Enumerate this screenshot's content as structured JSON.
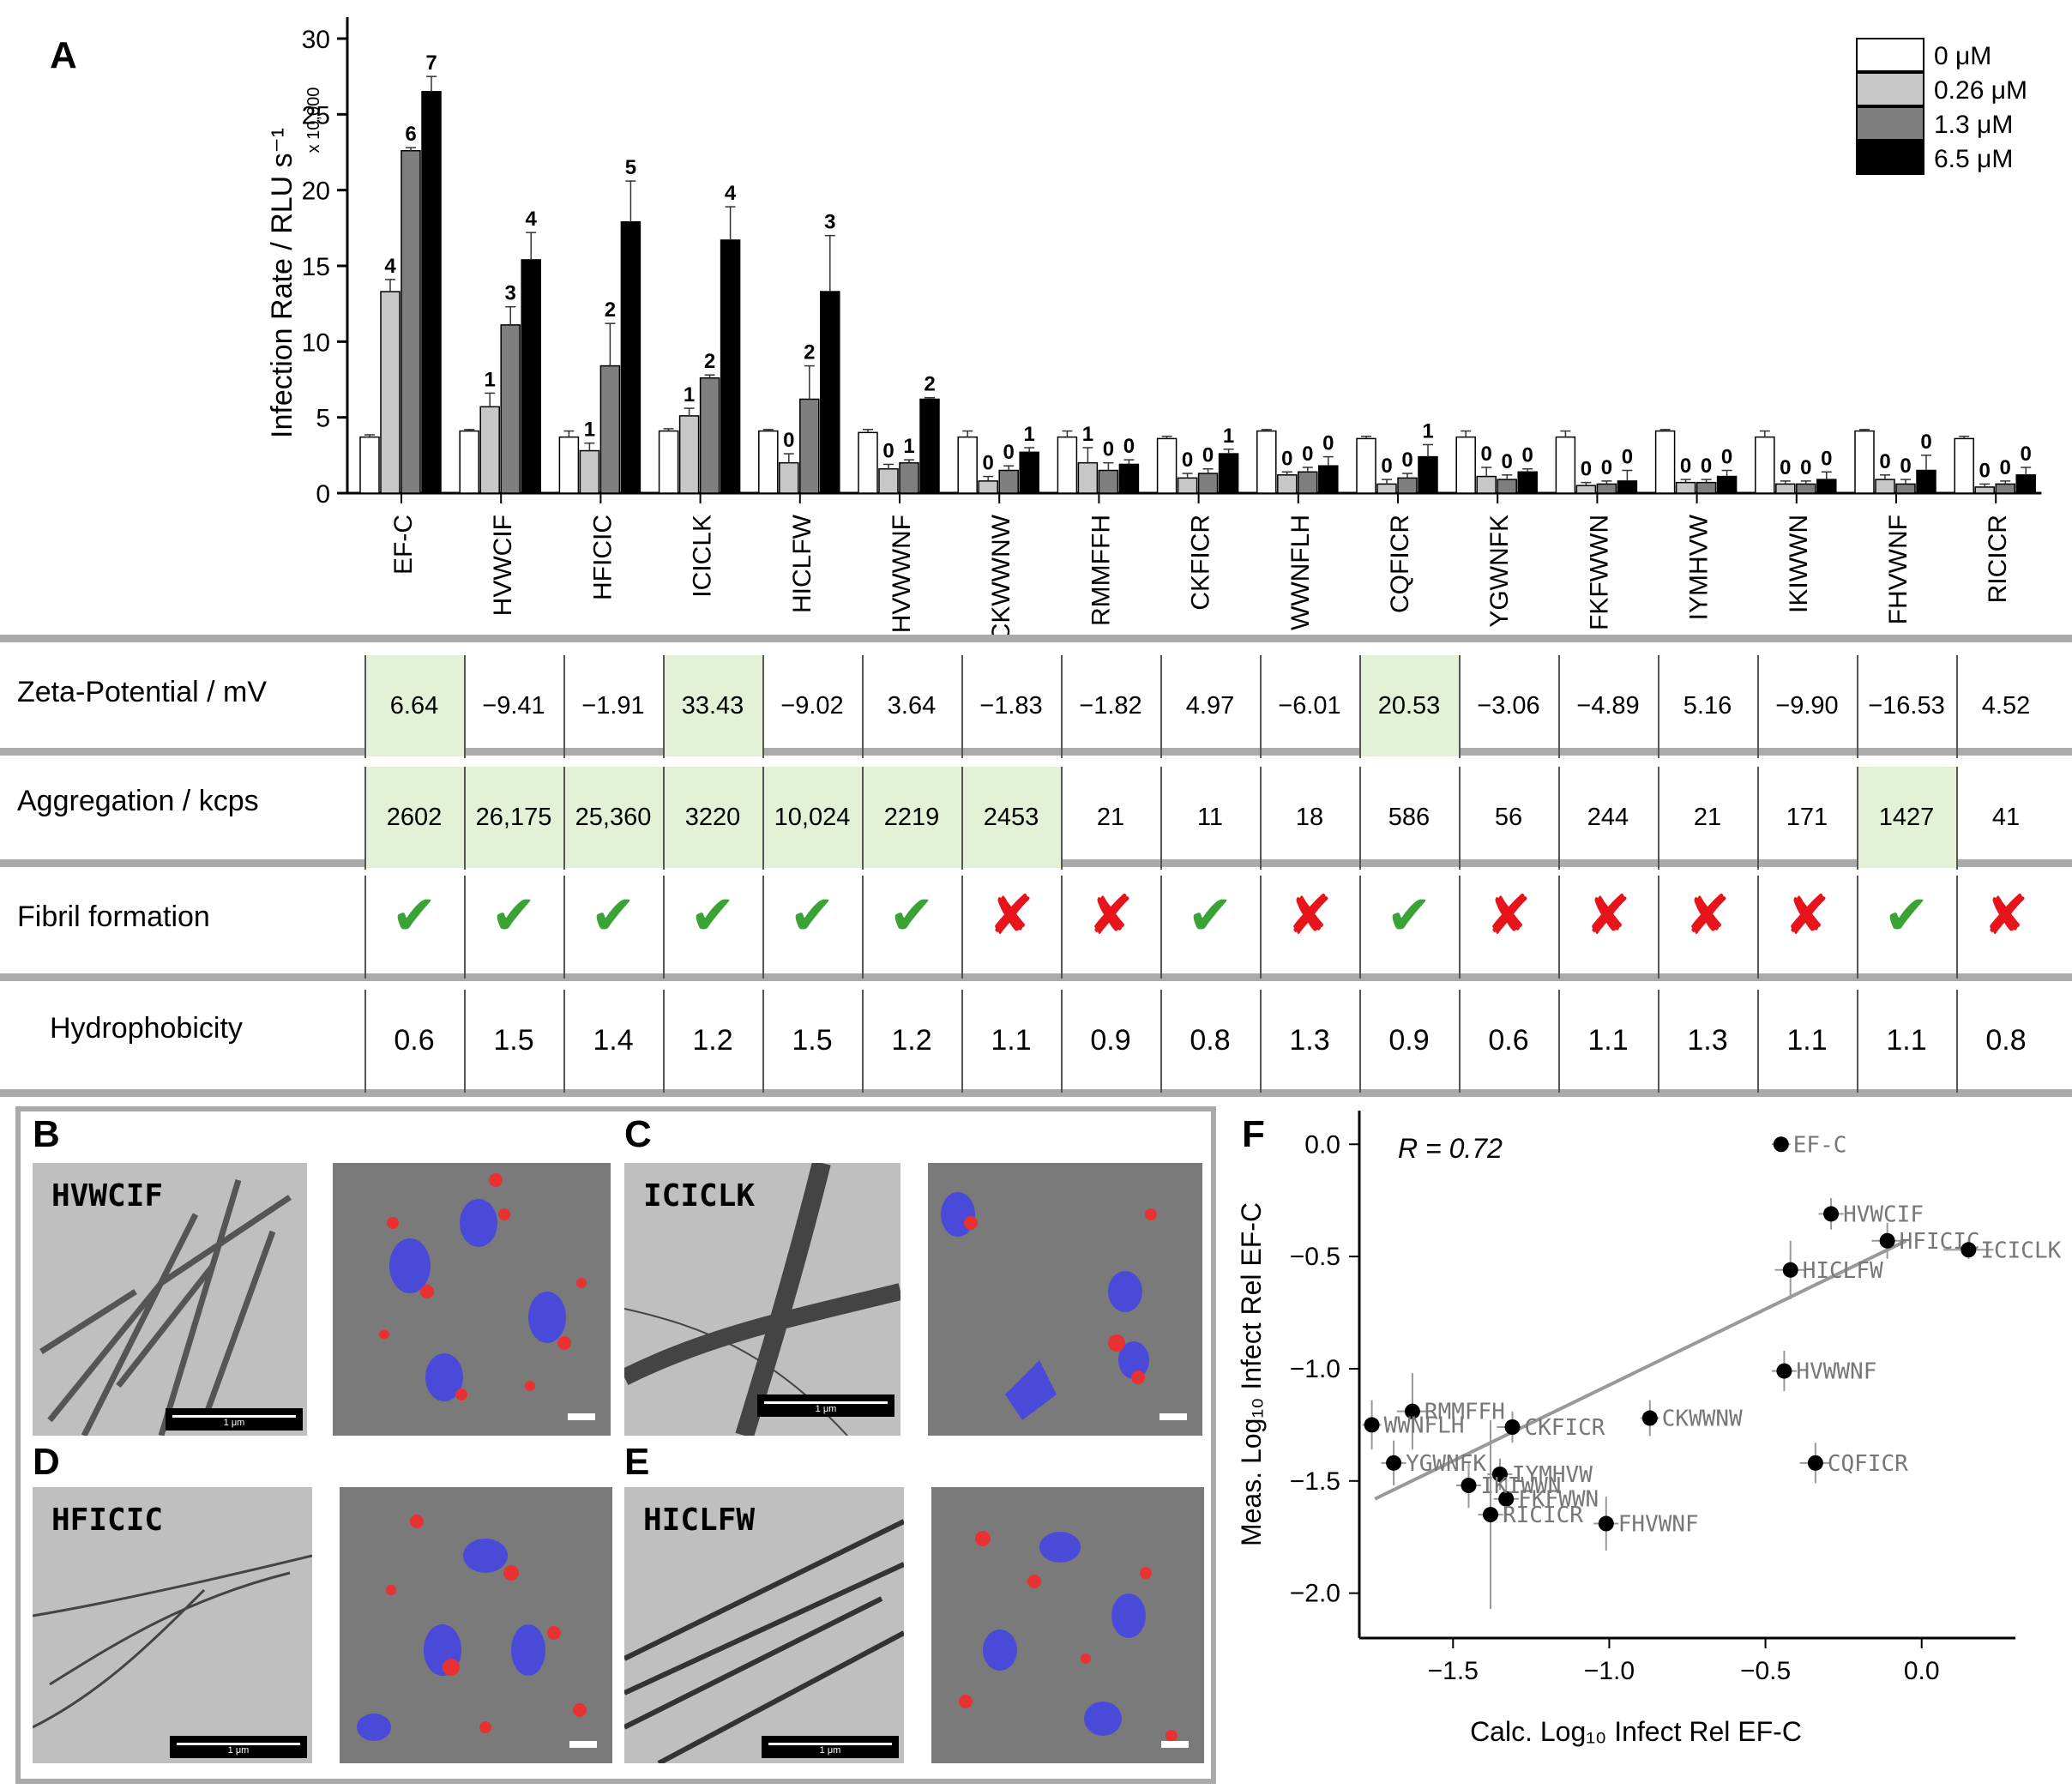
{
  "panel_labels": {
    "A": "A",
    "B": "B",
    "C": "C",
    "D": "D",
    "E": "E",
    "F": "F"
  },
  "chart_data": [
    {
      "id": "A",
      "type": "bar",
      "ylabel": "Infection Rate / RLU s⁻¹",
      "ylabel_multiplier": "x 10,000",
      "ylim": [
        0,
        30
      ],
      "yticks": [
        0,
        5,
        10,
        15,
        20,
        25,
        30
      ],
      "categories": [
        "EF-C",
        "HVWCIF",
        "HFICIC",
        "ICICLK",
        "HICLFW",
        "HVWWNF",
        "CKWWNW",
        "RMMFFH",
        "CKFICR",
        "WWNFLH",
        "CQFICR",
        "YGWNFK",
        "FKFWWN",
        "IYMHVW",
        "IKIWWN",
        "FHVWNF",
        "RICICR"
      ],
      "series": [
        {
          "name": "0 μM",
          "color": "#ffffff",
          "values": [
            3.7,
            4.1,
            3.7,
            4.1,
            4.1,
            4.0,
            3.7,
            3.7,
            3.6,
            4.1,
            3.6,
            3.7,
            3.7,
            4.1,
            3.7,
            4.1,
            3.6
          ],
          "errors": [
            0.15,
            0.1,
            0.4,
            0.15,
            0.1,
            0.2,
            0.4,
            0.4,
            0.15,
            0.1,
            0.15,
            0.4,
            0.4,
            0.1,
            0.4,
            0.1,
            0.15
          ],
          "labels": [
            "",
            "",
            "",
            "",
            "",
            "",
            "",
            "",
            "",
            "",
            "",
            "",
            "",
            "",
            "",
            "",
            ""
          ]
        },
        {
          "name": "0.26 μM",
          "color": "#c7c7c7",
          "values": [
            13.3,
            5.7,
            2.8,
            5.1,
            2.0,
            1.6,
            0.8,
            2.0,
            1.0,
            1.2,
            0.6,
            1.1,
            0.5,
            0.7,
            0.6,
            0.9,
            0.4
          ],
          "errors": [
            0.8,
            0.9,
            0.5,
            0.5,
            0.6,
            0.3,
            0.3,
            1.0,
            0.3,
            0.2,
            0.3,
            0.6,
            0.2,
            0.2,
            0.2,
            0.3,
            0.2
          ],
          "labels": [
            "4",
            "1",
            "1",
            "1",
            "0",
            "0",
            "0",
            "1",
            "0",
            "0",
            "0",
            "0",
            "0",
            "0",
            "0",
            "0",
            "0"
          ]
        },
        {
          "name": "1.3 μM",
          "color": "#7f7f7f",
          "values": [
            22.6,
            11.1,
            8.4,
            7.6,
            6.2,
            2.0,
            1.5,
            1.5,
            1.3,
            1.4,
            1.0,
            0.9,
            0.6,
            0.7,
            0.6,
            0.6,
            0.6
          ],
          "errors": [
            0.2,
            1.2,
            2.8,
            0.2,
            2.2,
            0.2,
            0.3,
            0.5,
            0.3,
            0.3,
            0.3,
            0.3,
            0.2,
            0.2,
            0.2,
            0.3,
            0.2
          ],
          "labels": [
            "6",
            "3",
            "2",
            "2",
            "2",
            "1",
            "0",
            "0",
            "0",
            "0",
            "0",
            "0",
            "0",
            "0",
            "0",
            "0",
            "0"
          ]
        },
        {
          "name": "6.5 μM",
          "color": "#000000",
          "values": [
            26.5,
            15.4,
            17.9,
            16.7,
            13.3,
            6.2,
            2.7,
            1.9,
            2.6,
            1.8,
            2.4,
            1.4,
            0.8,
            1.1,
            0.9,
            1.5,
            1.2
          ],
          "errors": [
            1.0,
            1.8,
            2.7,
            2.2,
            3.7,
            0.1,
            0.3,
            0.3,
            0.3,
            0.6,
            0.8,
            0.2,
            0.7,
            0.4,
            0.5,
            1.0,
            0.5
          ],
          "labels": [
            "7",
            "4",
            "5",
            "4",
            "3",
            "2",
            "1",
            "0",
            "1",
            "0",
            "1",
            "0",
            "0",
            "0",
            "0",
            "0",
            "0"
          ]
        }
      ]
    },
    {
      "id": "F",
      "type": "scatter",
      "xlabel": "Calc. Log₁₀ Infect Rel EF-C",
      "ylabel": "Meas. Log₁₀ Infect Rel EF-C",
      "annotation": "R = 0.72",
      "xlim": [
        -1.8,
        0.3
      ],
      "ylim": [
        -2.2,
        0.15
      ],
      "xticks": [
        -1.5,
        -1.0,
        -0.5,
        0.0
      ],
      "yticks": [
        -2.0,
        -1.5,
        -1.0,
        -0.5,
        0.0
      ],
      "fit_line": {
        "x": [
          -1.75,
          -0.05
        ],
        "y": [
          -1.58,
          -0.43
        ]
      },
      "points": [
        {
          "label": "EF-C",
          "x": -0.45,
          "y": 0.0,
          "xerr": 0.03,
          "yerr": 0.03
        },
        {
          "label": "HVWCIF",
          "x": -0.29,
          "y": -0.31,
          "xerr": 0.04,
          "yerr": 0.07
        },
        {
          "label": "HFICIC",
          "x": -0.11,
          "y": -0.43,
          "xerr": 0.05,
          "yerr": 0.08
        },
        {
          "label": "ICICLK",
          "x": 0.15,
          "y": -0.47,
          "xerr": 0.08,
          "yerr": 0.04
        },
        {
          "label": "HICLFW",
          "x": -0.42,
          "y": -0.56,
          "xerr": 0.05,
          "yerr": 0.13
        },
        {
          "label": "HVWWNF",
          "x": -0.44,
          "y": -1.01,
          "xerr": 0.04,
          "yerr": 0.09
        },
        {
          "label": "CKWWNW",
          "x": -0.87,
          "y": -1.22,
          "xerr": 0.03,
          "yerr": 0.08
        },
        {
          "label": "RMMFFH",
          "x": -1.63,
          "y": -1.19,
          "xerr": 0.05,
          "yerr": 0.17
        },
        {
          "label": "CKFICR",
          "x": -1.31,
          "y": -1.26,
          "xerr": 0.05,
          "yerr": 0.07
        },
        {
          "label": "WWNFLH",
          "x": -1.76,
          "y": -1.25,
          "xerr": 0.03,
          "yerr": 0.11
        },
        {
          "label": "CQFICR",
          "x": -0.34,
          "y": -1.42,
          "xerr": 0.05,
          "yerr": 0.09
        },
        {
          "label": "YGWNFK",
          "x": -1.69,
          "y": -1.42,
          "xerr": 0.04,
          "yerr": 0.1
        },
        {
          "label": "FKFWWN",
          "x": -1.33,
          "y": -1.58,
          "xerr": 0.04,
          "yerr": 0.1
        },
        {
          "label": "IYMHVW",
          "x": -1.35,
          "y": -1.47,
          "xerr": 0.04,
          "yerr": 0.07
        },
        {
          "label": "IKIWWN",
          "x": -1.45,
          "y": -1.52,
          "xerr": 0.04,
          "yerr": 0.1
        },
        {
          "label": "FHVWNF",
          "x": -1.01,
          "y": -1.69,
          "xerr": 0.04,
          "yerr": 0.12
        },
        {
          "label": "RICICR",
          "x": -1.38,
          "y": -1.65,
          "xerr": 0.04,
          "yerr": 0.42
        }
      ]
    }
  ],
  "table": {
    "rows": [
      {
        "key": "zeta",
        "label": "Zeta-Potential / mV",
        "values": [
          "6.64",
          "−9.41",
          "−1.91",
          "33.43",
          "−9.02",
          "3.64",
          "−1.83",
          "−1.82",
          "4.97",
          "−6.01",
          "20.53",
          "−3.06",
          "−4.89",
          "5.16",
          "−9.90",
          "−16.53",
          "4.52"
        ],
        "highlight": [
          true,
          false,
          false,
          true,
          false,
          false,
          false,
          false,
          false,
          false,
          true,
          false,
          false,
          false,
          false,
          false,
          false
        ]
      },
      {
        "key": "agg",
        "label": "Aggregation / kcps",
        "values": [
          "2602",
          "26,175",
          "25,360",
          "3220",
          "10,024",
          "2219",
          "2453",
          "21",
          "11",
          "18",
          "586",
          "56",
          "244",
          "21",
          "171",
          "1427",
          "41"
        ],
        "highlight": [
          true,
          true,
          true,
          true,
          true,
          true,
          true,
          false,
          false,
          false,
          false,
          false,
          false,
          false,
          false,
          true,
          false
        ]
      },
      {
        "key": "fibril",
        "label": "Fibril formation",
        "values": [
          "✔",
          "✔",
          "✔",
          "✔",
          "✔",
          "✔",
          "✘",
          "✘",
          "✔",
          "✘",
          "✔",
          "✘",
          "✘",
          "✘",
          "✘",
          "✔",
          "✘"
        ],
        "highlight": [
          false,
          false,
          false,
          false,
          false,
          false,
          false,
          false,
          false,
          false,
          false,
          false,
          false,
          false,
          false,
          false,
          false
        ]
      },
      {
        "key": "hydro",
        "label": "Hydrophobicity",
        "values": [
          "0.6",
          "1.5",
          "1.4",
          "1.2",
          "1.5",
          "1.2",
          "1.1",
          "0.9",
          "0.8",
          "1.3",
          "0.9",
          "0.6",
          "1.1",
          "1.3",
          "1.1",
          "1.1",
          "0.8"
        ],
        "highlight": [
          false,
          false,
          false,
          false,
          false,
          false,
          false,
          false,
          false,
          false,
          false,
          false,
          false,
          false,
          false,
          false,
          false
        ]
      }
    ]
  },
  "micrographs": [
    {
      "panel": "B",
      "peptide": "HVWCIF",
      "scale": "1 μm"
    },
    {
      "panel": "C",
      "peptide": "ICICLK",
      "scale": "1 μm"
    },
    {
      "panel": "D",
      "peptide": "HFICIC",
      "scale": "1 μm"
    },
    {
      "panel": "E",
      "peptide": "HICLFW",
      "scale": "1 μm"
    }
  ]
}
